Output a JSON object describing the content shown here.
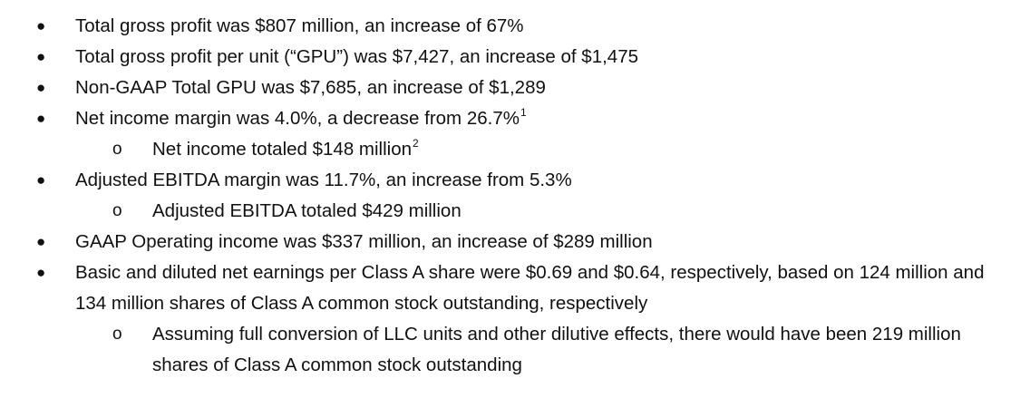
{
  "bullet_glyph": "●",
  "sub_bullet_glyph": "o",
  "items": [
    {
      "text": "Total gross profit was $807 million, an increase of 67%"
    },
    {
      "text": "Total gross profit per unit (“GPU”) was $7,427, an increase of $1,475"
    },
    {
      "text": "Non-GAAP Total GPU was $7,685, an increase of $1,289"
    },
    {
      "text": "Net income margin was 4.0%, a decrease from 26.7%",
      "footnote": "1"
    },
    {
      "text": "Net income totaled $148 million",
      "footnote": "2"
    },
    {
      "text": "Adjusted EBITDA margin was 11.7%, an increase from 5.3%"
    },
    {
      "text": "Adjusted EBITDA totaled $429 million"
    },
    {
      "text": "GAAP Operating income was $337 million, an increase of $289 million"
    },
    {
      "text": "Basic and diluted net earnings per Class A share were $0.69 and $0.64, respectively, based on 124 million and 134 million shares of Class A common stock outstanding, respectively"
    },
    {
      "text": "Assuming full conversion of LLC units and other dilutive effects, there would have been 219 million shares of Class A common stock outstanding"
    }
  ]
}
